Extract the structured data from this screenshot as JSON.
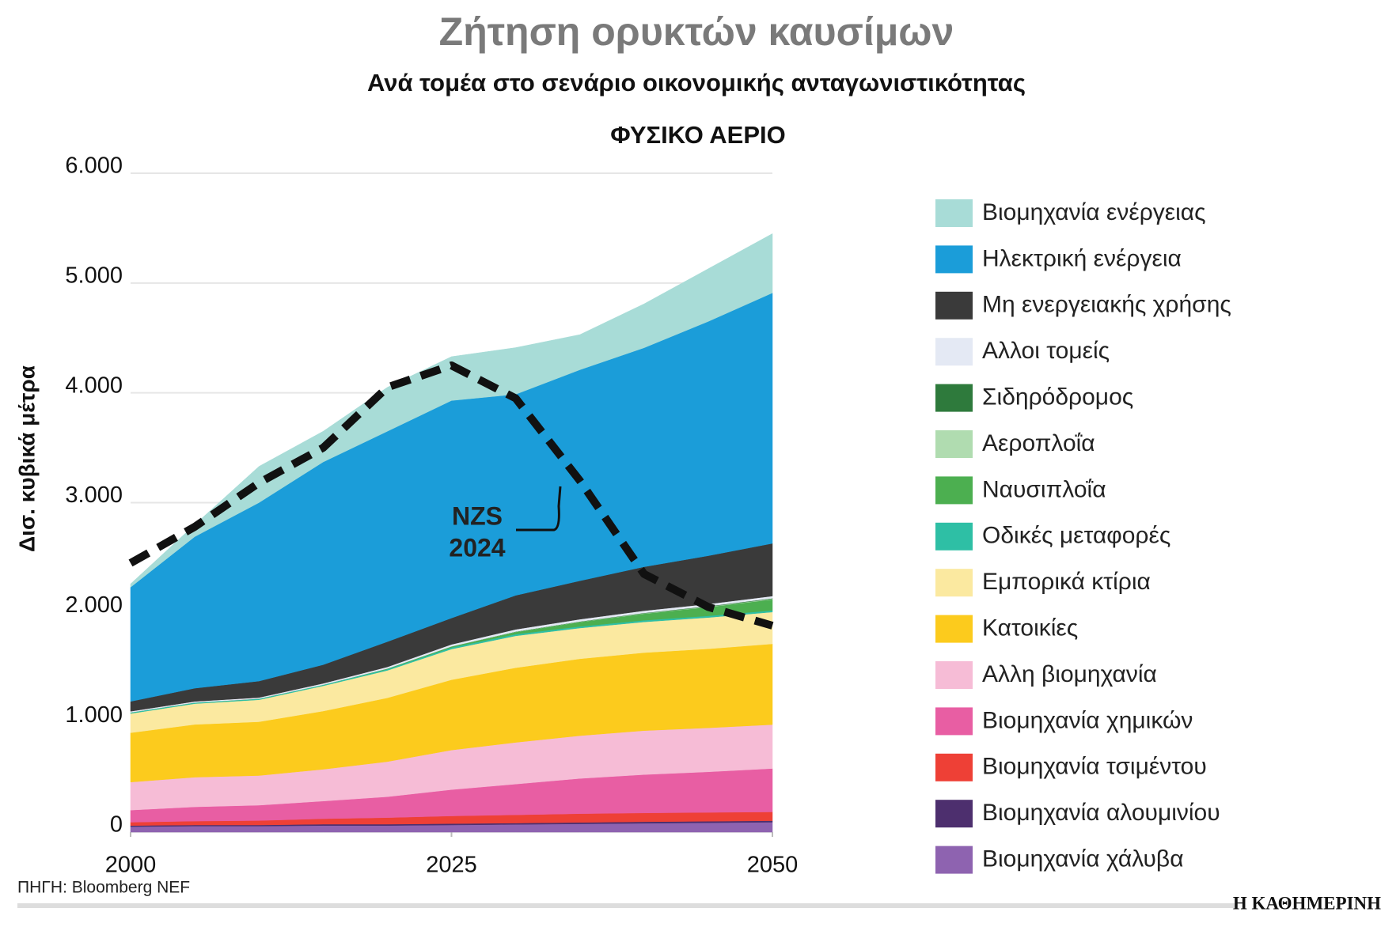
{
  "chart_data": {
    "type": "stacked-area",
    "title": "Ζήτηση ορυκτών καυσίμων",
    "subtitle": "Ανά τομέα στο σενάριο οικονομικής ανταγωνιστικότητας",
    "panel_title": "ΦΥΣΙΚΟ ΑΕΡΙΟ",
    "y_label": "Δισ. κυβικά μέτρα",
    "source": "ΠΗΓΗ: Bloomberg NEF",
    "publisher": "Η ΚΑΘΗΜΕΡΙΝΗ",
    "x": [
      2000,
      2005,
      2010,
      2015,
      2020,
      2025,
      2030,
      2035,
      2040,
      2045,
      2050
    ],
    "xlim": [
      2000,
      2050
    ],
    "xticks": [
      2000,
      2025,
      2050
    ],
    "ylim": [
      0,
      6000
    ],
    "yticks": [
      0,
      {
        "value": 1000,
        "label": "1.000"
      },
      {
        "value": 2000,
        "label": "2.000"
      },
      {
        "value": 3000,
        "label": "3.000"
      },
      {
        "value": 4000,
        "label": "4.000"
      },
      {
        "value": 5000,
        "label": "5.000"
      },
      {
        "value": 6000,
        "label": "6.000"
      }
    ],
    "grid": true,
    "series": [
      {
        "name": "Βιομηχανία χάλυβα",
        "color": "#8e63b0",
        "values": [
          50,
          55,
          55,
          60,
          60,
          65,
          70,
          75,
          80,
          85,
          90
        ]
      },
      {
        "name": "Βιομηχανία αλουμινίου",
        "color": "#4d2f6e",
        "values": [
          10,
          10,
          10,
          12,
          12,
          12,
          12,
          13,
          14,
          14,
          14
        ]
      },
      {
        "name": "Βιομηχανία τσιμέντου",
        "color": "#ee4036",
        "values": [
          30,
          35,
          40,
          50,
          60,
          70,
          75,
          80,
          80,
          80,
          80
        ]
      },
      {
        "name": "Βιομηχανία χημικών",
        "color": "#e85ea3",
        "values": [
          110,
          130,
          140,
          160,
          190,
          240,
          280,
          320,
          350,
          370,
          395
        ]
      },
      {
        "name": "Αλλη βιομηχανία",
        "color": "#f6bcd6",
        "values": [
          255,
          270,
          270,
          290,
          320,
          360,
          380,
          390,
          400,
          400,
          400
        ]
      },
      {
        "name": "Κατοικίες",
        "color": "#fccb1d",
        "values": [
          450,
          480,
          490,
          530,
          580,
          640,
          680,
          700,
          710,
          720,
          735
        ]
      },
      {
        "name": "Εμπορικά κτίρια",
        "color": "#fbe9a0",
        "values": [
          175,
          190,
          200,
          230,
          250,
          280,
          290,
          280,
          280,
          285,
          290
        ]
      },
      {
        "name": "Οδικές μεταφορές",
        "color": "#2ebfa5",
        "values": [
          10,
          10,
          10,
          10,
          12,
          14,
          15,
          15,
          15,
          15,
          15
        ]
      },
      {
        "name": "Ναυσιπλοΐα",
        "color": "#4caf50",
        "values": [
          0,
          0,
          0,
          0,
          5,
          10,
          20,
          40,
          60,
          80,
          100
        ]
      },
      {
        "name": "Αεροπλοΐα",
        "color": "#b0dcb0",
        "values": [
          0,
          0,
          0,
          0,
          0,
          0,
          2,
          2,
          3,
          4,
          5
        ]
      },
      {
        "name": "Σιδηρόδρομος",
        "color": "#2e7a3c",
        "values": [
          0,
          0,
          0,
          0,
          0,
          0,
          2,
          3,
          4,
          4,
          5
        ]
      },
      {
        "name": "Αλλοι τομείς",
        "color": "#e4e9f4",
        "values": [
          10,
          10,
          10,
          12,
          15,
          18,
          20,
          20,
          20,
          20,
          20
        ]
      },
      {
        "name": "Μη ενεργειακής χρήσης",
        "color": "#3a3a3a",
        "values": [
          90,
          120,
          150,
          170,
          230,
          240,
          310,
          350,
          400,
          440,
          480
        ]
      },
      {
        "name": "Ηλεκτρική ενέργεια",
        "color": "#1b9dd9",
        "values": [
          1040,
          1380,
          1625,
          1846,
          1916,
          1981,
          1831,
          1922,
          1994,
          2133,
          2281
        ]
      },
      {
        "name": "Βιομηχανία ενέργειας",
        "color": "#a8dcd7",
        "values": [
          30,
          110,
          330,
          280,
          400,
          400,
          425,
          320,
          400,
          480,
          540
        ]
      }
    ],
    "reference_line": {
      "label": [
        "NZS",
        "2024"
      ],
      "color": "#111111",
      "values": [
        2450,
        2780,
        3180,
        3500,
        4050,
        4250,
        3950,
        3200,
        2350,
        2050,
        1880
      ]
    }
  }
}
